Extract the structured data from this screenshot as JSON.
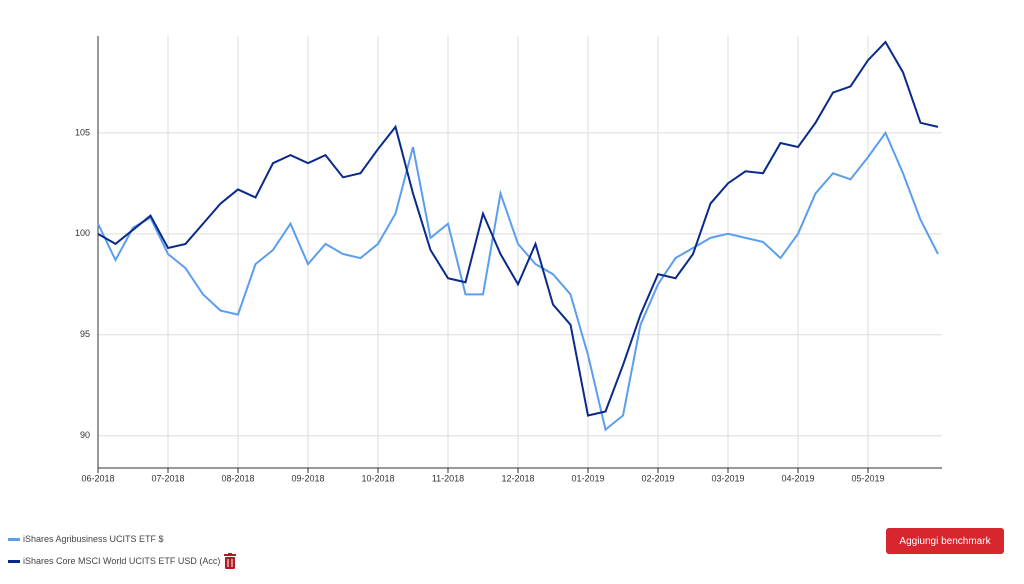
{
  "chart_data": {
    "type": "line",
    "categories": [
      "06-2018",
      null,
      null,
      null,
      "07-2018",
      null,
      null,
      null,
      "08-2018",
      null,
      null,
      null,
      "09-2018",
      null,
      null,
      null,
      "10-2018",
      null,
      null,
      null,
      "11-2018",
      null,
      null,
      null,
      "12-2018",
      null,
      null,
      null,
      "01-2019",
      null,
      null,
      null,
      "02-2019",
      null,
      null,
      null,
      "03-2019",
      null,
      null,
      null,
      "04-2019",
      null,
      null,
      null,
      "05-2019",
      null,
      null,
      null,
      null
    ],
    "series": [
      {
        "name": "iShares Agribusiness UCITS ETF $",
        "color": "#5b9ef0",
        "values": [
          100.5,
          98.7,
          100.3,
          100.8,
          99.0,
          98.3,
          97.0,
          96.2,
          96.0,
          98.5,
          99.2,
          100.5,
          98.5,
          99.5,
          99.0,
          98.8,
          99.5,
          101.0,
          104.3,
          99.8,
          100.5,
          97.0,
          97.0,
          102.0,
          99.5,
          98.5,
          98.0,
          97.0,
          94.0,
          90.3,
          91.0,
          95.5,
          97.5,
          98.8,
          99.3,
          99.8,
          100.0,
          99.8,
          99.6,
          98.8,
          100.0,
          102.0,
          103.0,
          102.7,
          103.8,
          105.0,
          103.0,
          100.7,
          99.0
        ]
      },
      {
        "name": "iShares Core MSCI World UCITS ETF USD (Acc)",
        "color": "#0a2a8a",
        "values": [
          100.0,
          99.5,
          100.2,
          100.9,
          99.3,
          99.5,
          100.5,
          101.5,
          102.2,
          101.8,
          103.5,
          103.9,
          103.5,
          103.9,
          102.8,
          103.0,
          104.2,
          105.3,
          102.0,
          99.2,
          97.8,
          97.6,
          101.0,
          99.0,
          97.5,
          99.5,
          96.5,
          95.5,
          91.0,
          91.2,
          93.5,
          96.0,
          98.0,
          97.8,
          99.0,
          101.5,
          102.5,
          103.1,
          103.0,
          104.5,
          104.3,
          105.5,
          107.0,
          107.3,
          108.6,
          109.5,
          108.0,
          105.5,
          105.3
        ]
      }
    ],
    "ylim": [
      88.4,
      109.8
    ],
    "yticks": [
      90,
      95,
      100,
      105
    ],
    "grid": true
  },
  "ui": {
    "button": "Aggiungi benchmark"
  }
}
